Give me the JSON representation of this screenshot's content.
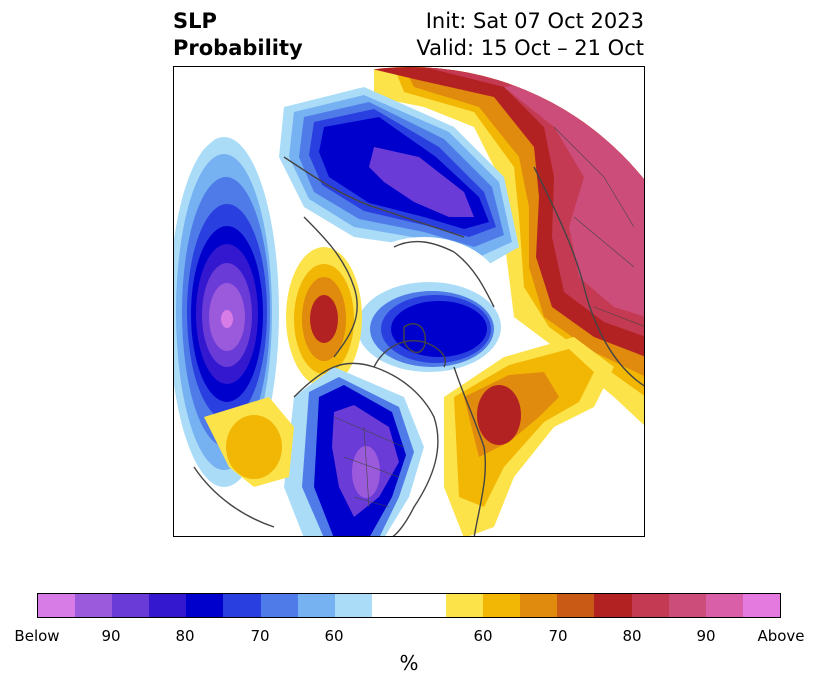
{
  "title": {
    "left_line1": "SLP",
    "left_line2": "Probability",
    "right_line1": "Init: Sat 07 Oct 2023",
    "right_line2": "Valid: 15 Oct – 21 Oct"
  },
  "colorbar": {
    "unit": "%",
    "tick_labels": [
      "Below",
      "90",
      "80",
      "70",
      "60",
      "60",
      "70",
      "80",
      "90",
      "Above"
    ],
    "colors": [
      "#d77be6",
      "#9b59dc",
      "#6a3bd6",
      "#3418d0",
      "#0000cd",
      "#2a3fe0",
      "#4f7be8",
      "#76b1f2",
      "#aadcf8",
      "#ffffff",
      "#ffffff",
      "#fde34a",
      "#f2b705",
      "#e08a0e",
      "#c85a16",
      "#b32222",
      "#c43a52",
      "#cc4d7a",
      "#d95fa8",
      "#e47ae0"
    ]
  },
  "map": {
    "projection": "north-polar-stereographic",
    "field": "sea level pressure probability",
    "palette": {
      "above_light": "#fde34a",
      "above_mid": "#f2b705",
      "above_orange": "#e08a0e",
      "above_dark_orange": "#c85a16",
      "above_red": "#b32222",
      "above_crimson": "#c43a52",
      "above_pink": "#cc4d7a",
      "below_light": "#aadcf8",
      "below_sky": "#76b1f2",
      "below_blue": "#4f7be8",
      "below_royal": "#2a3fe0",
      "below_deep": "#0000cd",
      "below_indigo": "#3418d0",
      "below_violet": "#6a3bd6",
      "below_purple": "#9b59dc",
      "below_magenta": "#d77be6",
      "coast": "#444444"
    }
  }
}
